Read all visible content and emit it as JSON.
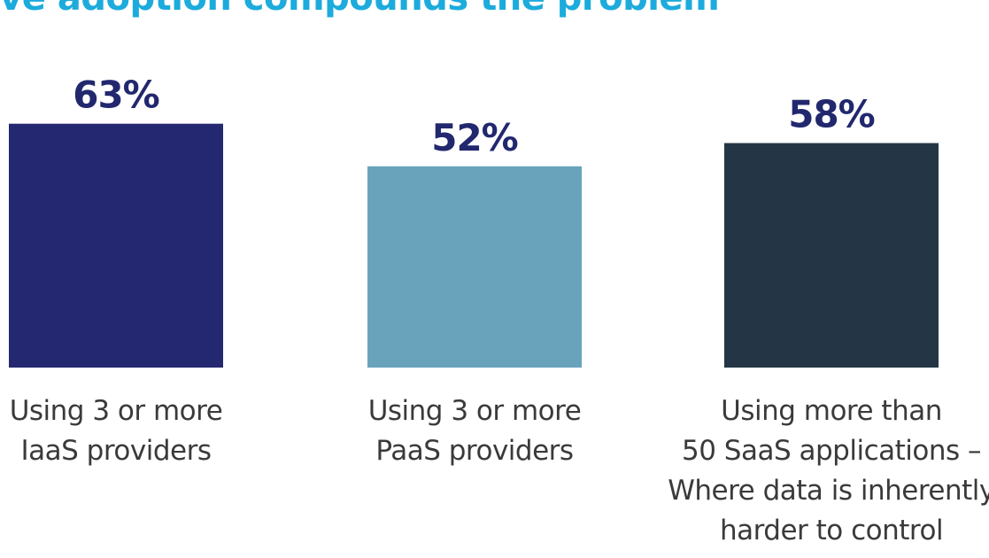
{
  "title": "ive adoption compounds the problem",
  "colors": {
    "title": "#1cabdc",
    "value_label": "#22286e"
  },
  "chart_data": {
    "type": "bar",
    "categories": [
      [
        "Using 3 or more",
        "IaaS providers"
      ],
      [
        "Using 3 or more",
        "PaaS providers"
      ],
      [
        "Using more than",
        "50 SaaS applications –",
        "Where data is inherently",
        "harder to control"
      ]
    ],
    "values": [
      63,
      52,
      58
    ],
    "value_labels": [
      "63%",
      "52%",
      "58%"
    ],
    "bar_colors": [
      "#232870",
      "#69a3bb",
      "#243645"
    ],
    "ylim": [
      0,
      100
    ],
    "xlabel": "",
    "ylabel": "",
    "grid": false
  }
}
